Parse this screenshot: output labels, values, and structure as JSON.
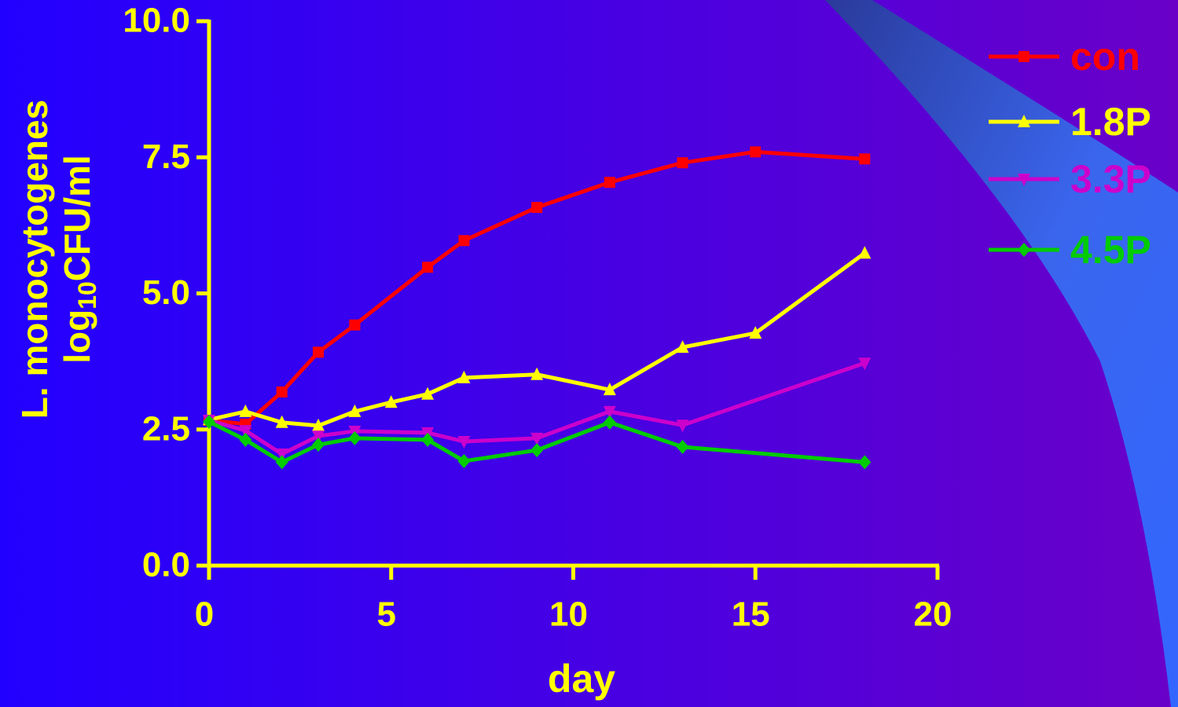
{
  "chart_data": {
    "type": "line",
    "xlabel": "day",
    "ylabel": {
      "line1": "L. monocytogenes",
      "line2": [
        "log",
        "10",
        "CFU/ml"
      ]
    },
    "xlim": [
      0,
      20
    ],
    "xticks": [
      0,
      5,
      10,
      15,
      20
    ],
    "ylim": [
      0,
      10
    ],
    "yticks": [
      {
        "value": 0,
        "label": "0.0"
      },
      2.5,
      {
        "value": 5,
        "label": "5.0"
      },
      7.5,
      {
        "value": 10,
        "label": "10.0"
      }
    ],
    "legend": "top-right",
    "series": [
      {
        "name": "con",
        "color": "#ff0000",
        "marker": "square",
        "x": [
          0,
          1,
          2,
          3,
          4,
          6,
          7,
          9,
          11,
          13,
          15,
          18
        ],
        "values": [
          2.67,
          2.6,
          3.19,
          3.92,
          4.42,
          5.48,
          5.97,
          6.58,
          7.04,
          7.4,
          7.6,
          7.47
        ]
      },
      {
        "name": "1.8P",
        "color": "#ffff00",
        "marker": "triangle-up",
        "x": [
          0,
          1,
          2,
          3,
          4,
          5,
          6,
          7,
          9,
          11,
          13,
          15,
          18
        ],
        "values": [
          2.68,
          2.83,
          2.63,
          2.57,
          2.83,
          3.0,
          3.15,
          3.45,
          3.51,
          3.23,
          4.01,
          4.27,
          5.74
        ]
      },
      {
        "name": "3.3P",
        "color": "#cc00cc",
        "marker": "triangle-down",
        "x": [
          0,
          1,
          2,
          3,
          4,
          6,
          7,
          9,
          11,
          13,
          18
        ],
        "values": [
          2.67,
          2.48,
          2.05,
          2.38,
          2.47,
          2.44,
          2.28,
          2.34,
          2.83,
          2.58,
          3.72
        ]
      },
      {
        "name": "4.5P",
        "color": "#00cc00",
        "marker": "diamond",
        "x": [
          0,
          1,
          2,
          3,
          4,
          6,
          7,
          9,
          11,
          13,
          18
        ],
        "values": [
          2.64,
          2.31,
          1.9,
          2.22,
          2.34,
          2.31,
          1.92,
          2.12,
          2.63,
          2.18,
          1.9
        ]
      }
    ]
  }
}
